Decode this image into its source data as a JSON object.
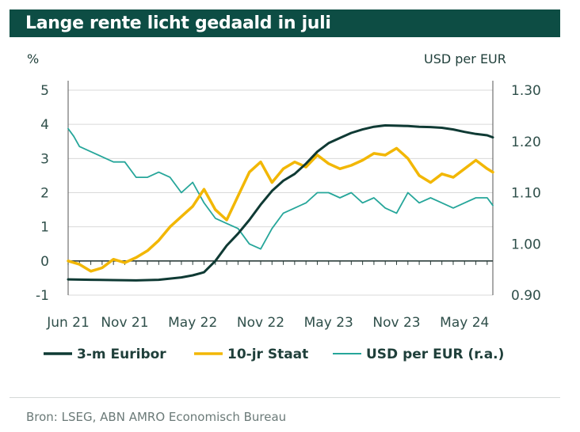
{
  "header": {
    "title": "Lange rente licht gedaald in juli"
  },
  "source": "Bron: LSEG, ABN AMRO Economisch Bureau",
  "colors": {
    "euribor": "#0f3a34",
    "staat": "#f2b705",
    "usd": "#26a69a",
    "header_bg": "#0d4d44",
    "grid": "#d9d9d9"
  },
  "chart_data": {
    "type": "line",
    "title": "Lange rente licht gedaald in juli",
    "y_left": {
      "label": "%",
      "ylim": [
        -1,
        5
      ],
      "ticks": [
        "5",
        "4",
        "3",
        "2",
        "1",
        "0",
        "-1"
      ],
      "tick_values": [
        5,
        4,
        3,
        2,
        1,
        0,
        -1
      ]
    },
    "y_right": {
      "label": "USD per EUR",
      "ylim": [
        0.9,
        1.3
      ],
      "ticks": [
        "1.30",
        "1.20",
        "1.10",
        "1.00",
        "0.90"
      ],
      "tick_values": [
        1.3,
        1.2,
        1.1,
        1.0,
        0.9
      ]
    },
    "x_ticks": [
      "Jun 21",
      "Nov 21",
      "May 22",
      "Nov 22",
      "May 23",
      "Nov 23",
      "May 24"
    ],
    "x_tick_positions": [
      0,
      5,
      11,
      17,
      23,
      29,
      35
    ],
    "x_range": [
      0,
      37.5
    ],
    "legend": [
      "3-m Euribor",
      "10-jr Staat",
      "USD per EUR (r.a.)"
    ],
    "legend_position": "bottom",
    "series": [
      {
        "name": "3-m Euribor",
        "axis": "left",
        "x": [
          0,
          2,
          4,
          6,
          8,
          10,
          11,
          12,
          13,
          14,
          15,
          16,
          17,
          18,
          19,
          20,
          21,
          22,
          23,
          24,
          25,
          26,
          27,
          28,
          29,
          30,
          31,
          32,
          33,
          34,
          35,
          36,
          37,
          37.5
        ],
        "values": [
          -0.54,
          -0.55,
          -0.56,
          -0.57,
          -0.55,
          -0.48,
          -0.42,
          -0.33,
          0.0,
          0.45,
          0.8,
          1.2,
          1.65,
          2.05,
          2.35,
          2.55,
          2.85,
          3.2,
          3.45,
          3.6,
          3.75,
          3.85,
          3.93,
          3.97,
          3.96,
          3.95,
          3.93,
          3.92,
          3.9,
          3.85,
          3.78,
          3.72,
          3.68,
          3.62
        ]
      },
      {
        "name": "10-jr Staat",
        "axis": "left",
        "x": [
          0,
          1,
          2,
          3,
          4,
          5,
          6,
          7,
          8,
          9,
          10,
          11,
          12,
          13,
          14,
          15,
          16,
          17,
          18,
          19,
          20,
          21,
          22,
          23,
          24,
          25,
          26,
          27,
          28,
          29,
          30,
          31,
          32,
          33,
          34,
          35,
          36,
          37,
          37.5
        ],
        "values": [
          0.0,
          -0.1,
          -0.3,
          -0.2,
          0.05,
          -0.05,
          0.1,
          0.3,
          0.6,
          1.0,
          1.3,
          1.6,
          2.1,
          1.5,
          1.2,
          1.9,
          2.6,
          2.9,
          2.3,
          2.7,
          2.9,
          2.75,
          3.1,
          2.85,
          2.7,
          2.8,
          2.95,
          3.15,
          3.1,
          3.3,
          3.0,
          2.5,
          2.3,
          2.55,
          2.45,
          2.7,
          2.95,
          2.7,
          2.6
        ]
      },
      {
        "name": "USD per EUR (r.a.)",
        "axis": "right",
        "x": [
          0,
          0.5,
          1,
          2,
          3,
          4,
          5,
          6,
          7,
          8,
          9,
          10,
          11,
          12,
          13,
          14,
          15,
          16,
          17,
          18,
          19,
          20,
          21,
          22,
          23,
          24,
          25,
          26,
          27,
          28,
          29,
          30,
          31,
          32,
          33,
          34,
          35,
          36,
          37,
          37.5
        ],
        "values": [
          1.225,
          1.21,
          1.19,
          1.18,
          1.17,
          1.16,
          1.16,
          1.13,
          1.13,
          1.14,
          1.13,
          1.1,
          1.12,
          1.08,
          1.05,
          1.04,
          1.03,
          1.0,
          0.99,
          1.03,
          1.06,
          1.07,
          1.08,
          1.1,
          1.1,
          1.09,
          1.1,
          1.08,
          1.09,
          1.07,
          1.06,
          1.1,
          1.08,
          1.09,
          1.08,
          1.07,
          1.08,
          1.09,
          1.09,
          1.075
        ]
      }
    ]
  }
}
